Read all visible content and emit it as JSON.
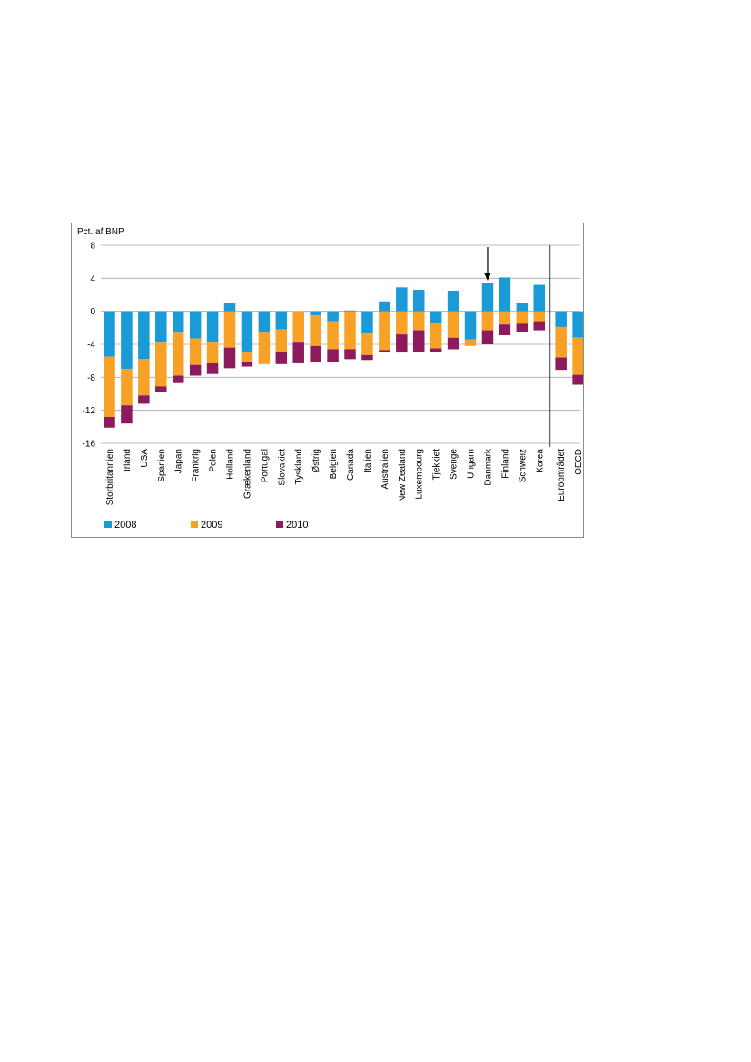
{
  "chart_data": {
    "type": "bar",
    "stacked": true,
    "title": "",
    "ylabel": "Pct. af BNP",
    "xlabel": "",
    "ylim": [
      -16,
      8
    ],
    "yticks": [
      8,
      4,
      0,
      -4,
      -8,
      -12,
      -16
    ],
    "ytick_labels": [
      "8",
      "4",
      "0",
      "-4",
      "-8",
      "-12",
      "-16"
    ],
    "grid": "horizontal",
    "legend_position": "bottom-left",
    "categories": [
      "Storbritannien",
      "Irland",
      "USA",
      "Spanien",
      "Japan",
      "Frankrig",
      "Polen",
      "Holland",
      "Grækenland",
      "Portugal",
      "Slovakiet",
      "Tyskland",
      "Østrig",
      "Belgien",
      "Canada",
      "Italien",
      "Australien",
      "New Zealand",
      "Luxembourg",
      "Tjekkiet",
      "Sverige",
      "Ungarn",
      "Danmark",
      "Finland",
      "Schweiz",
      "Korea",
      "Euroområdet",
      "OECD"
    ],
    "separator_after_index": 25,
    "highlight": {
      "category": "Danmark",
      "marker": "arrow"
    },
    "series": [
      {
        "name": "2008",
        "color": "#1a9ad6",
        "values": [
          -5.5,
          -7.0,
          -5.8,
          -3.8,
          -2.6,
          -3.3,
          -3.8,
          1.0,
          -4.9,
          -2.6,
          -2.2,
          0.0,
          -0.5,
          -1.2,
          0.1,
          -2.7,
          1.2,
          2.9,
          2.6,
          -1.5,
          2.5,
          -3.4,
          3.4,
          4.1,
          1.0,
          3.2,
          -1.9,
          -3.2
        ]
      },
      {
        "name": "2009",
        "color": "#f7a226",
        "values": [
          -7.3,
          -4.4,
          -4.4,
          -5.3,
          -5.2,
          -3.2,
          -2.5,
          -4.4,
          -1.2,
          -3.8,
          -2.7,
          -3.8,
          -3.7,
          -3.4,
          -4.6,
          -2.6,
          -4.7,
          -2.8,
          -2.3,
          -3.0,
          -3.2,
          -0.8,
          -2.3,
          -1.6,
          -1.5,
          -1.2,
          -3.7,
          -4.5
        ]
      },
      {
        "name": "2010",
        "color": "#8c1a5c",
        "values": [
          -1.3,
          -2.2,
          -1.0,
          -0.7,
          -0.9,
          -1.3,
          -1.3,
          -2.5,
          -0.6,
          0.0,
          -1.5,
          -2.5,
          -1.9,
          -1.5,
          -1.2,
          -0.6,
          -0.2,
          -2.2,
          -2.6,
          -0.4,
          -1.4,
          0.0,
          -1.7,
          -1.3,
          -1.0,
          -1.1,
          -1.5,
          -1.2
        ]
      }
    ]
  }
}
